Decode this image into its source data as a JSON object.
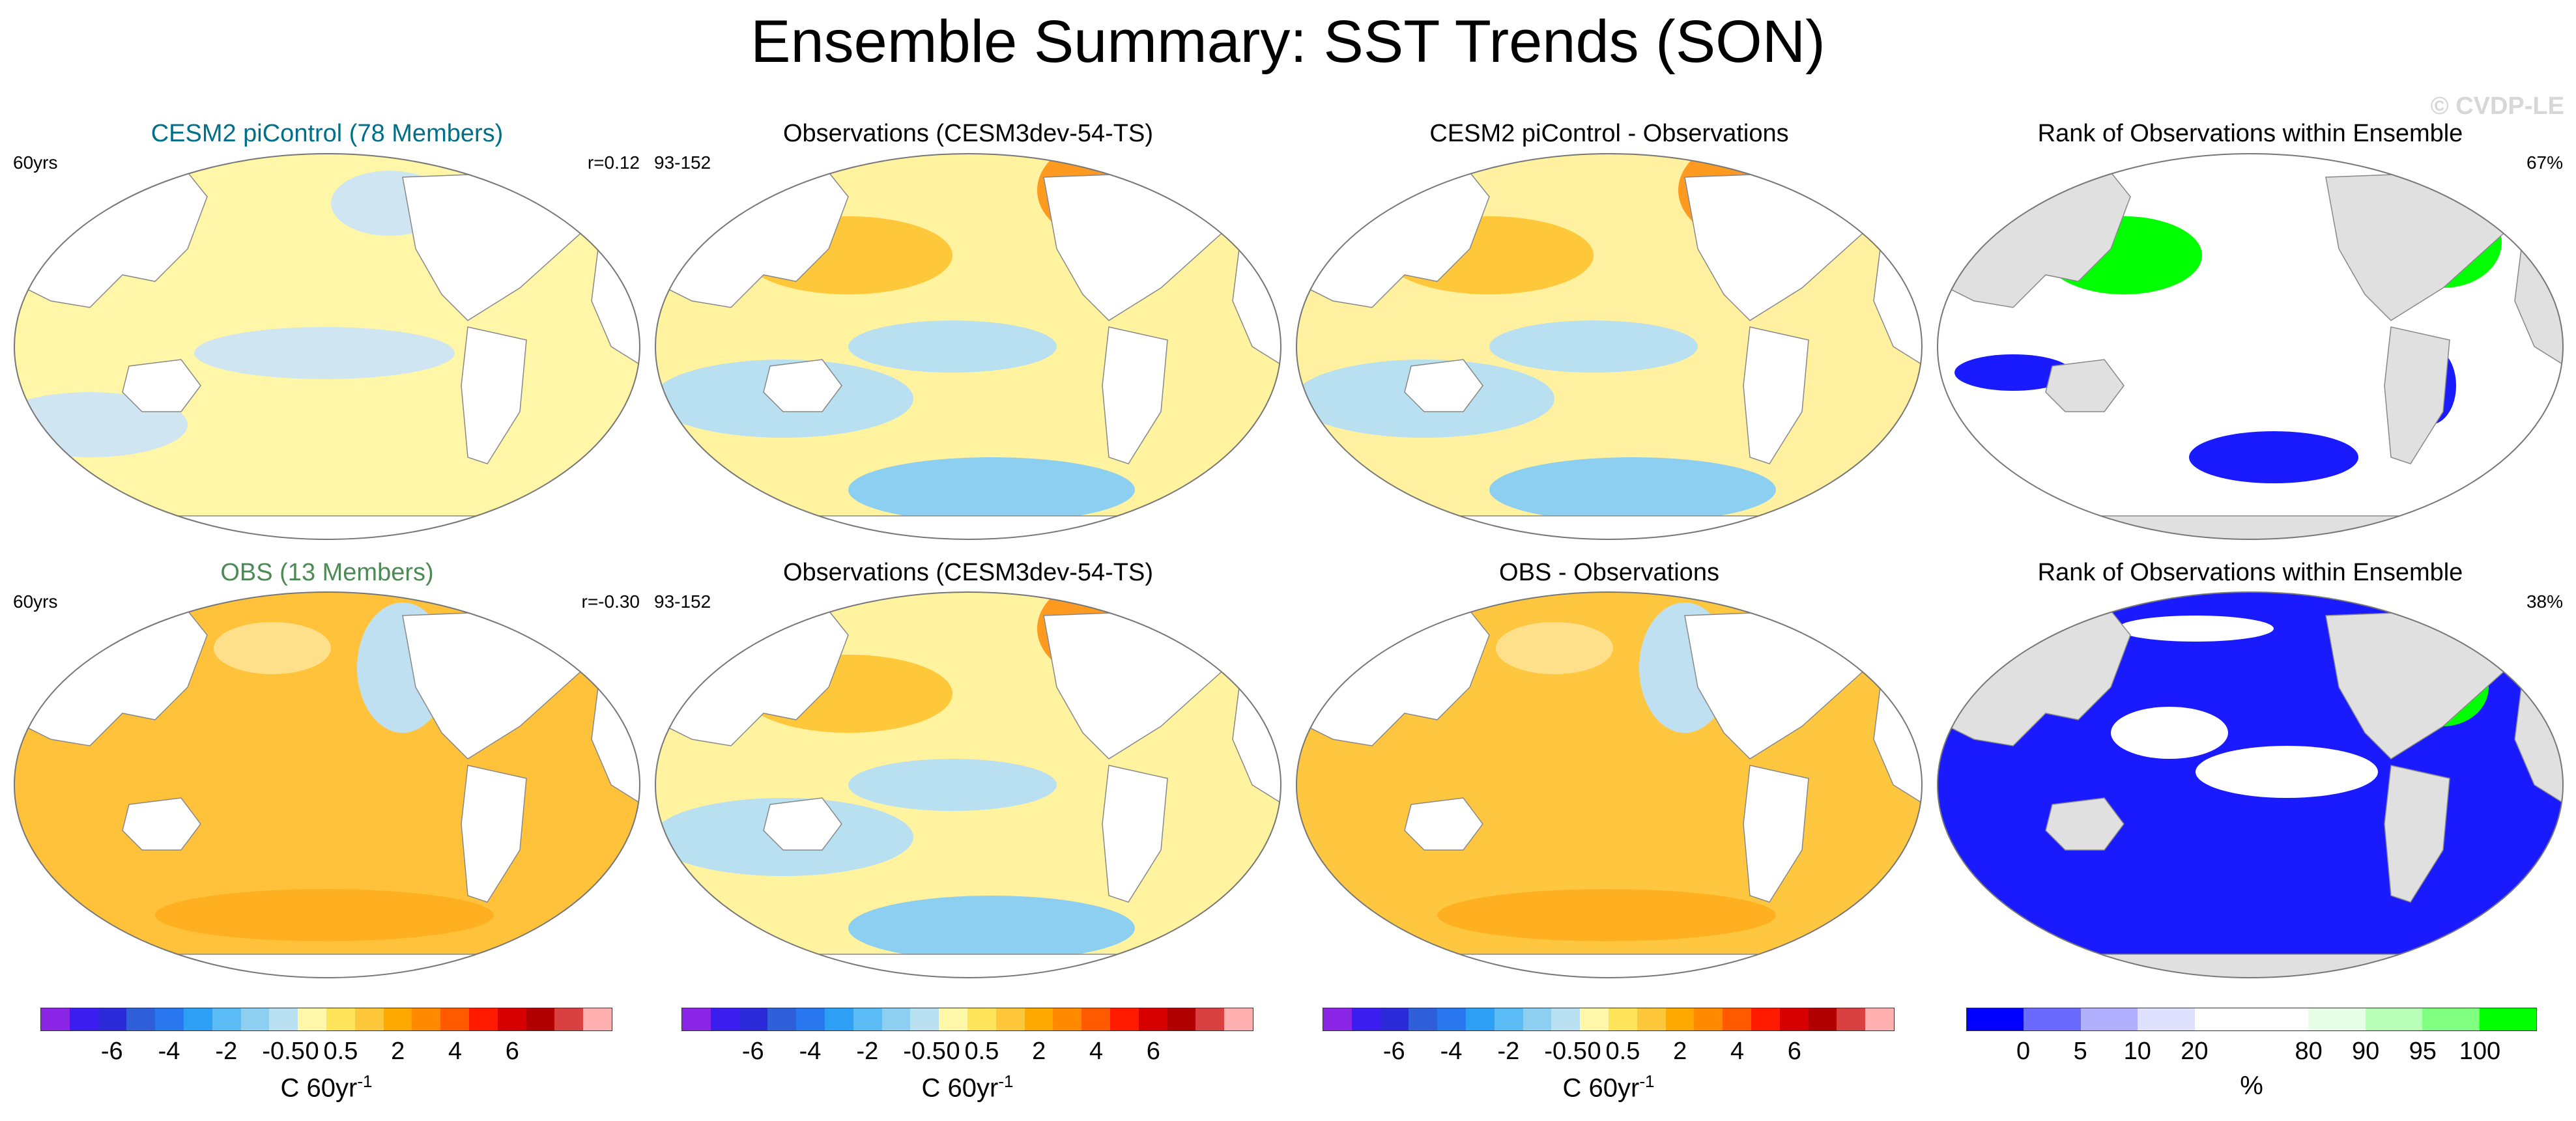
{
  "page_title": "Ensemble Summary: SST Trends (SON)",
  "watermark": "© CVDP-LE",
  "rows": [
    {
      "panels": [
        {
          "title": "CESM2 piControl (78 Members)",
          "title_color": "#00708a",
          "left_label": "60yrs",
          "right_label": "r=0.12",
          "fill": "#fff6a8"
        },
        {
          "title": "Observations (CESM3dev-54-TS)",
          "title_color": "#000000",
          "left_label": "93-152",
          "right_label": "",
          "fill": "#fff3a0"
        },
        {
          "title": "CESM2 piControl - Observations",
          "title_color": "#000000",
          "left_label": "",
          "right_label": "",
          "fill": "#fff1a0"
        },
        {
          "title": "Rank of Observations within Ensemble",
          "title_color": "#000000",
          "left_label": "",
          "right_label": "67%",
          "fill": "#ffffff"
        }
      ]
    },
    {
      "panels": [
        {
          "title": "OBS (13 Members)",
          "title_color": "#4e8a55",
          "left_label": "60yrs",
          "right_label": "r=-0.30",
          "fill": "#ffc23a"
        },
        {
          "title": "Observations (CESM3dev-54-TS)",
          "title_color": "#000000",
          "left_label": "93-152",
          "right_label": "",
          "fill": "#fff3a0"
        },
        {
          "title": "OBS - Observations",
          "title_color": "#000000",
          "left_label": "",
          "right_label": "",
          "fill": "#ffc640"
        },
        {
          "title": "Rank of Observations within Ensemble",
          "title_color": "#000000",
          "left_label": "",
          "right_label": "38%",
          "fill": "#1a1aff"
        }
      ]
    }
  ],
  "colorbars": [
    {
      "colors": [
        "#8a25e6",
        "#3b1df0",
        "#2a2ad8",
        "#2f5fd8",
        "#2a78f0",
        "#2da0f5",
        "#5bbcf5",
        "#8dcff0",
        "#b9e0f0",
        "#fff8a8",
        "#ffe35a",
        "#ffc83a",
        "#ffa800",
        "#ff8a00",
        "#ff5a00",
        "#ff1a00",
        "#d60000",
        "#b00000",
        "#d94040",
        "#ffb0b0"
      ],
      "ticks": [
        "-6",
        "-4",
        "-2",
        "-0.5",
        "0",
        "0.5",
        "2",
        "4",
        "6"
      ],
      "unit": "C 60yr",
      "unit_sup": "-1"
    },
    {
      "colors": [
        "#8a25e6",
        "#3b1df0",
        "#2a2ad8",
        "#2f5fd8",
        "#2a78f0",
        "#2da0f5",
        "#5bbcf5",
        "#8dcff0",
        "#b9e0f0",
        "#fff8a8",
        "#ffe35a",
        "#ffc83a",
        "#ffa800",
        "#ff8a00",
        "#ff5a00",
        "#ff1a00",
        "#d60000",
        "#b00000",
        "#d94040",
        "#ffb0b0"
      ],
      "ticks": [
        "-6",
        "-4",
        "-2",
        "-0.5",
        "0",
        "0.5",
        "2",
        "4",
        "6"
      ],
      "unit": "C 60yr",
      "unit_sup": "-1"
    },
    {
      "colors": [
        "#8a25e6",
        "#3b1df0",
        "#2a2ad8",
        "#2f5fd8",
        "#2a78f0",
        "#2da0f5",
        "#5bbcf5",
        "#8dcff0",
        "#b9e0f0",
        "#fff8a8",
        "#ffe35a",
        "#ffc83a",
        "#ffa800",
        "#ff8a00",
        "#ff5a00",
        "#ff1a00",
        "#d60000",
        "#b00000",
        "#d94040",
        "#ffb0b0"
      ],
      "ticks": [
        "-6",
        "-4",
        "-2",
        "-0.5",
        "0",
        "0.5",
        "2",
        "4",
        "6"
      ],
      "unit": "C 60yr",
      "unit_sup": "-1"
    },
    {
      "colors": [
        "#0000ff",
        "#6a6aff",
        "#b0b0ff",
        "#e0e0ff",
        "#ffffff",
        "#ffffff",
        "#e6ffe6",
        "#b8ffb8",
        "#80ff80",
        "#00ff00"
      ],
      "ticks": [
        "0",
        "5",
        "10",
        "20",
        "80",
        "90",
        "95",
        "100"
      ],
      "unit": "%",
      "unit_sup": ""
    }
  ]
}
